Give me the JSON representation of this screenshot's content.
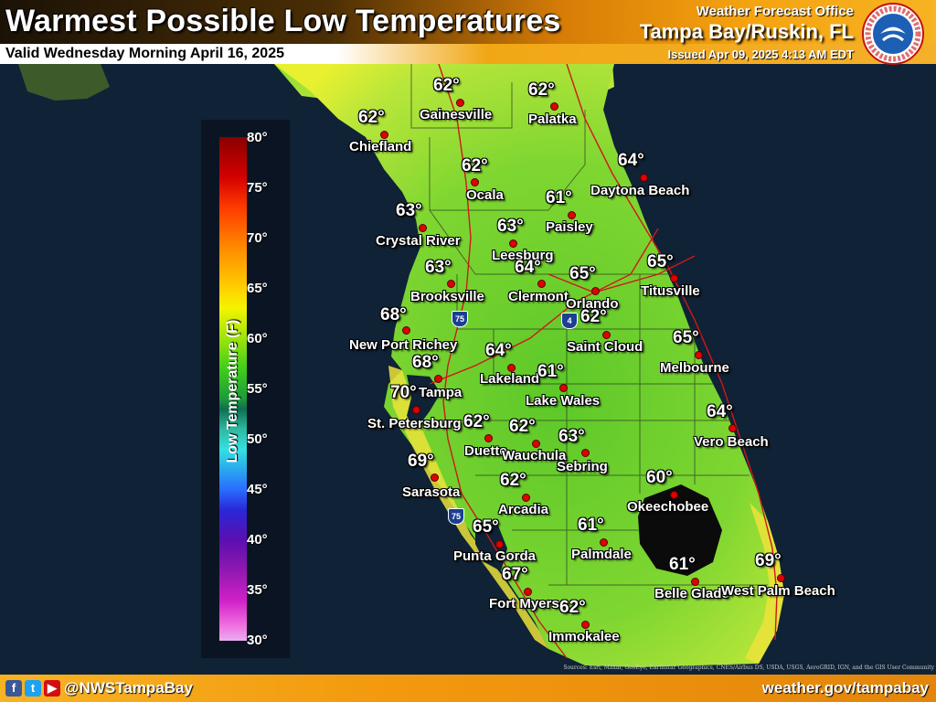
{
  "header": {
    "title": "Warmest Possible Low Temperatures",
    "valid": "Valid Wednesday Morning April 16, 2025",
    "office_label": "Weather Forecast Office",
    "office_name": "Tampa Bay/Ruskin, FL",
    "issued": "Issued Apr 09, 2025 4:13 AM EDT",
    "logo_text": "NATIONAL WEATHER SERVICE"
  },
  "legend": {
    "title": "Low Temperature (F)",
    "ticks": [
      "80°",
      "75°",
      "70°",
      "65°",
      "60°",
      "55°",
      "50°",
      "45°",
      "40°",
      "35°",
      "30°"
    ],
    "min": 30,
    "max": 80
  },
  "highways": {
    "i75_a": "75",
    "i4": "4",
    "i75_b": "75"
  },
  "stations": [
    {
      "id": "gainesville",
      "name": "Gainesville",
      "temp": "62°"
    },
    {
      "id": "palatka",
      "name": "Palatka",
      "temp": "62°"
    },
    {
      "id": "chiefland",
      "name": "Chiefland",
      "temp": "62°"
    },
    {
      "id": "daytona",
      "name": "Daytona Beach",
      "temp": "64°"
    },
    {
      "id": "ocala",
      "name": "Ocala",
      "temp": "62°"
    },
    {
      "id": "paisley",
      "name": "Paisley",
      "temp": "61°"
    },
    {
      "id": "crystal",
      "name": "Crystal River",
      "temp": "63°"
    },
    {
      "id": "leesburg",
      "name": "Leesburg",
      "temp": "63°"
    },
    {
      "id": "brooksville",
      "name": "Brooksville",
      "temp": "63°"
    },
    {
      "id": "clermont",
      "name": "Clermont",
      "temp": "64°"
    },
    {
      "id": "orlando",
      "name": "Orlando",
      "temp": "65°"
    },
    {
      "id": "titusville",
      "name": "Titusville",
      "temp": "65°"
    },
    {
      "id": "newportrichey",
      "name": "New Port Richey",
      "temp": "68°"
    },
    {
      "id": "saintcloud",
      "name": "Saint Cloud",
      "temp": "62°"
    },
    {
      "id": "melbourne",
      "name": "Melbourne",
      "temp": "65°"
    },
    {
      "id": "tampa",
      "name": "Tampa",
      "temp": "68°"
    },
    {
      "id": "lakeland",
      "name": "Lakeland",
      "temp": "64°"
    },
    {
      "id": "lakewales",
      "name": "Lake Wales",
      "temp": "61°"
    },
    {
      "id": "stpete",
      "name": "St. Petersburg",
      "temp": "70°"
    },
    {
      "id": "duette",
      "name": "Duette",
      "temp": "62°"
    },
    {
      "id": "wauchula",
      "name": "Wauchula",
      "temp": "62°"
    },
    {
      "id": "sebring",
      "name": "Sebring",
      "temp": "63°"
    },
    {
      "id": "verobeach",
      "name": "Vero Beach",
      "temp": "64°"
    },
    {
      "id": "sarasota",
      "name": "Sarasota",
      "temp": "69°"
    },
    {
      "id": "arcadia",
      "name": "Arcadia",
      "temp": "62°"
    },
    {
      "id": "okeechobee",
      "name": "Okeechobee",
      "temp": "60°"
    },
    {
      "id": "puntagorda",
      "name": "Punta Gorda",
      "temp": "65°"
    },
    {
      "id": "palmdale",
      "name": "Palmdale",
      "temp": "61°"
    },
    {
      "id": "fortmyers",
      "name": "Fort Myers",
      "temp": "67°"
    },
    {
      "id": "belleglade",
      "name": "Belle Glade",
      "temp": "61°"
    },
    {
      "id": "westpalm",
      "name": "West Palm Beach",
      "temp": "69°"
    },
    {
      "id": "immokalee",
      "name": "Immokalee",
      "temp": "62°"
    }
  ],
  "colors": {
    "water": "#0f2236",
    "land_cool": "#5cc829",
    "land_mid": "#9be034",
    "land_warm": "#e8f030",
    "land_hot": "#f4d21a",
    "lake": "#0b0b0b",
    "station_dot": "#e00000"
  },
  "footer": {
    "handle": "@NWSTampaBay",
    "website": "weather.gov/tampabay",
    "attribution": "Sources: Esri, Maxar, GeoEye, Earthstar Geographics, CNES/Airbus DS, USDA, USGS, AeroGRID, IGN, and the GIS User Community",
    "social_icons": [
      "facebook-icon",
      "twitter-icon",
      "youtube-icon"
    ]
  }
}
